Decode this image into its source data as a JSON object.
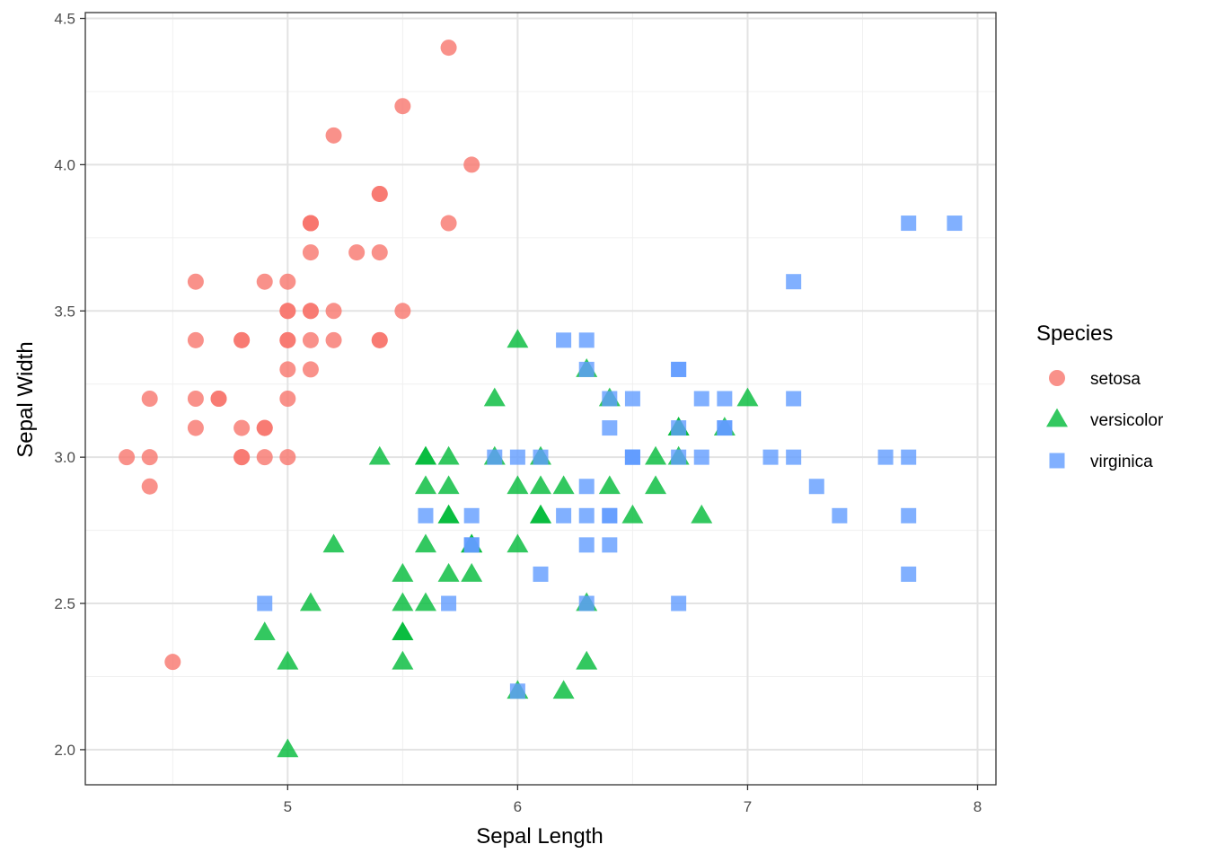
{
  "chart_data": {
    "type": "scatter",
    "xlabel": "Sepal Length",
    "ylabel": "Sepal Width",
    "xlim": [
      4.12,
      8.08
    ],
    "ylim": [
      1.88,
      4.52
    ],
    "x_ticks": [
      5,
      6,
      7,
      8
    ],
    "x_tick_labels": [
      "5",
      "6",
      "7",
      "8"
    ],
    "y_ticks": [
      2.0,
      2.5,
      3.0,
      3.5,
      4.0,
      4.5
    ],
    "y_tick_labels": [
      "2.0",
      "2.5",
      "3.0",
      "3.5",
      "4.0",
      "4.5"
    ],
    "grid": true,
    "legend": {
      "title": "Species",
      "placement": "right",
      "labels": [
        "setosa",
        "versicolor",
        "virginica"
      ]
    },
    "series": [
      {
        "name": "setosa",
        "shape": "circle",
        "color": "#F8766D",
        "points": [
          [
            5.1,
            3.5
          ],
          [
            4.9,
            3.0
          ],
          [
            4.7,
            3.2
          ],
          [
            4.6,
            3.1
          ],
          [
            5.0,
            3.6
          ],
          [
            5.4,
            3.9
          ],
          [
            4.6,
            3.4
          ],
          [
            5.0,
            3.4
          ],
          [
            4.4,
            2.9
          ],
          [
            4.9,
            3.1
          ],
          [
            5.4,
            3.7
          ],
          [
            4.8,
            3.4
          ],
          [
            4.8,
            3.0
          ],
          [
            4.3,
            3.0
          ],
          [
            5.8,
            4.0
          ],
          [
            5.7,
            4.4
          ],
          [
            5.4,
            3.9
          ],
          [
            5.1,
            3.5
          ],
          [
            5.7,
            3.8
          ],
          [
            5.1,
            3.8
          ],
          [
            5.4,
            3.4
          ],
          [
            5.1,
            3.7
          ],
          [
            4.6,
            3.6
          ],
          [
            5.1,
            3.3
          ],
          [
            4.8,
            3.4
          ],
          [
            5.0,
            3.0
          ],
          [
            5.0,
            3.4
          ],
          [
            5.2,
            3.5
          ],
          [
            5.2,
            3.4
          ],
          [
            4.7,
            3.2
          ],
          [
            4.8,
            3.1
          ],
          [
            5.4,
            3.4
          ],
          [
            5.2,
            4.1
          ],
          [
            5.5,
            4.2
          ],
          [
            4.9,
            3.1
          ],
          [
            5.0,
            3.2
          ],
          [
            5.5,
            3.5
          ],
          [
            4.9,
            3.6
          ],
          [
            4.4,
            3.0
          ],
          [
            5.1,
            3.4
          ],
          [
            5.0,
            3.5
          ],
          [
            4.5,
            2.3
          ],
          [
            4.4,
            3.2
          ],
          [
            5.0,
            3.5
          ],
          [
            5.1,
            3.8
          ],
          [
            4.8,
            3.0
          ],
          [
            5.1,
            3.8
          ],
          [
            4.6,
            3.2
          ],
          [
            5.3,
            3.7
          ],
          [
            5.0,
            3.3
          ]
        ]
      },
      {
        "name": "versicolor",
        "shape": "triangle",
        "color": "#00BA38",
        "points": [
          [
            7.0,
            3.2
          ],
          [
            6.4,
            3.2
          ],
          [
            6.9,
            3.1
          ],
          [
            5.5,
            2.3
          ],
          [
            6.5,
            2.8
          ],
          [
            5.7,
            2.8
          ],
          [
            6.3,
            3.3
          ],
          [
            4.9,
            2.4
          ],
          [
            6.6,
            2.9
          ],
          [
            5.2,
            2.7
          ],
          [
            5.0,
            2.0
          ],
          [
            5.9,
            3.0
          ],
          [
            6.0,
            2.2
          ],
          [
            6.1,
            2.9
          ],
          [
            5.6,
            2.9
          ],
          [
            6.7,
            3.1
          ],
          [
            5.6,
            3.0
          ],
          [
            5.8,
            2.7
          ],
          [
            6.2,
            2.2
          ],
          [
            5.6,
            2.5
          ],
          [
            5.9,
            3.2
          ],
          [
            6.1,
            2.8
          ],
          [
            6.3,
            2.5
          ],
          [
            6.1,
            2.8
          ],
          [
            6.4,
            2.9
          ],
          [
            6.6,
            3.0
          ],
          [
            6.8,
            2.8
          ],
          [
            6.7,
            3.0
          ],
          [
            6.0,
            2.9
          ],
          [
            5.7,
            2.6
          ],
          [
            5.5,
            2.4
          ],
          [
            5.5,
            2.4
          ],
          [
            5.8,
            2.7
          ],
          [
            6.0,
            2.7
          ],
          [
            5.4,
            3.0
          ],
          [
            6.0,
            3.4
          ],
          [
            6.7,
            3.1
          ],
          [
            6.3,
            2.3
          ],
          [
            5.6,
            3.0
          ],
          [
            5.5,
            2.5
          ],
          [
            5.5,
            2.6
          ],
          [
            6.1,
            3.0
          ],
          [
            5.8,
            2.6
          ],
          [
            5.0,
            2.3
          ],
          [
            5.6,
            2.7
          ],
          [
            5.7,
            3.0
          ],
          [
            5.7,
            2.9
          ],
          [
            6.2,
            2.9
          ],
          [
            5.1,
            2.5
          ],
          [
            5.7,
            2.8
          ]
        ]
      },
      {
        "name": "virginica",
        "shape": "square",
        "color": "#619CFF",
        "points": [
          [
            6.3,
            3.3
          ],
          [
            5.8,
            2.7
          ],
          [
            7.1,
            3.0
          ],
          [
            6.3,
            2.9
          ],
          [
            6.5,
            3.0
          ],
          [
            7.6,
            3.0
          ],
          [
            4.9,
            2.5
          ],
          [
            7.3,
            2.9
          ],
          [
            6.7,
            2.5
          ],
          [
            7.2,
            3.6
          ],
          [
            6.5,
            3.2
          ],
          [
            6.4,
            2.7
          ],
          [
            6.8,
            3.0
          ],
          [
            5.7,
            2.5
          ],
          [
            5.8,
            2.8
          ],
          [
            6.4,
            3.2
          ],
          [
            6.5,
            3.0
          ],
          [
            7.7,
            3.8
          ],
          [
            7.7,
            2.6
          ],
          [
            6.0,
            2.2
          ],
          [
            6.9,
            3.2
          ],
          [
            5.6,
            2.8
          ],
          [
            7.7,
            2.8
          ],
          [
            6.3,
            2.7
          ],
          [
            6.7,
            3.3
          ],
          [
            7.2,
            3.2
          ],
          [
            6.2,
            2.8
          ],
          [
            6.1,
            3.0
          ],
          [
            6.4,
            2.8
          ],
          [
            7.2,
            3.0
          ],
          [
            7.4,
            2.8
          ],
          [
            7.9,
            3.8
          ],
          [
            6.4,
            2.8
          ],
          [
            6.3,
            2.8
          ],
          [
            6.1,
            2.6
          ],
          [
            7.7,
            3.0
          ],
          [
            6.3,
            3.4
          ],
          [
            6.4,
            3.1
          ],
          [
            6.0,
            3.0
          ],
          [
            6.9,
            3.1
          ],
          [
            6.7,
            3.1
          ],
          [
            6.9,
            3.1
          ],
          [
            5.8,
            2.7
          ],
          [
            6.8,
            3.2
          ],
          [
            6.7,
            3.3
          ],
          [
            6.7,
            3.0
          ],
          [
            6.3,
            2.5
          ],
          [
            6.5,
            3.0
          ],
          [
            6.2,
            3.4
          ],
          [
            5.9,
            3.0
          ]
        ]
      }
    ]
  }
}
